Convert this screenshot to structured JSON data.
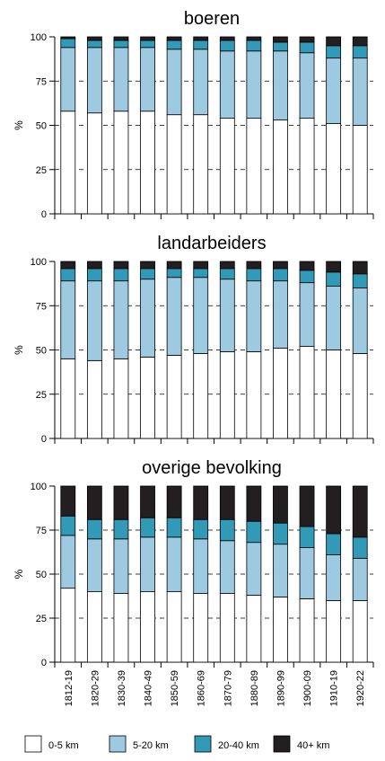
{
  "colors": {
    "0-5 km": "#ffffff",
    "5-20 km": "#9dc9e1",
    "20-40 km": "#3299b6",
    "40+ km": "#231f20"
  },
  "legend": [
    "0-5 km",
    "5-20 km",
    "20-40 km",
    "40+ km"
  ],
  "chart_data": [
    {
      "type": "bar",
      "stacked": true,
      "title": "boeren",
      "ylabel": "%",
      "ylim": [
        0,
        100
      ],
      "yticks": [
        0,
        25,
        50,
        75,
        100
      ],
      "grid": "dashed horizontal",
      "categories": [
        "1812-19",
        "1820-29",
        "1830-39",
        "1840-49",
        "1850-59",
        "1860-69",
        "1870-79",
        "1880-89",
        "1890-99",
        "1900-09",
        "1910-19",
        "1920-22"
      ],
      "series": [
        {
          "name": "0-5 km",
          "values": [
            58,
            57,
            58,
            58,
            56,
            56,
            54,
            54,
            53,
            54,
            51,
            50
          ]
        },
        {
          "name": "5-20 km",
          "values": [
            36,
            37,
            36,
            36,
            37,
            37,
            38,
            38,
            39,
            37,
            37,
            38
          ]
        },
        {
          "name": "20-40 km",
          "values": [
            5,
            4,
            4,
            4,
            5,
            5,
            6,
            6,
            5,
            6,
            7,
            7
          ]
        },
        {
          "name": "40+ km",
          "values": [
            1,
            2,
            2,
            2,
            2,
            2,
            2,
            2,
            3,
            3,
            5,
            5
          ]
        }
      ]
    },
    {
      "type": "bar",
      "stacked": true,
      "title": "landarbeiders",
      "ylabel": "%",
      "ylim": [
        0,
        100
      ],
      "yticks": [
        0,
        25,
        50,
        75,
        100
      ],
      "grid": "dashed horizontal",
      "categories": [
        "1812-19",
        "1820-29",
        "1830-39",
        "1840-49",
        "1850-59",
        "1860-69",
        "1870-79",
        "1880-89",
        "1890-99",
        "1900-09",
        "1910-19",
        "1920-22"
      ],
      "series": [
        {
          "name": "0-5 km",
          "values": [
            45,
            44,
            45,
            46,
            47,
            48,
            49,
            49,
            51,
            52,
            50,
            48
          ]
        },
        {
          "name": "5-20 km",
          "values": [
            44,
            45,
            44,
            44,
            44,
            43,
            41,
            40,
            38,
            36,
            36,
            37
          ]
        },
        {
          "name": "20-40 km",
          "values": [
            7,
            7,
            7,
            6,
            5,
            5,
            6,
            7,
            7,
            7,
            8,
            8
          ]
        },
        {
          "name": "40+ km",
          "values": [
            4,
            4,
            4,
            4,
            4,
            4,
            4,
            4,
            4,
            5,
            6,
            7
          ]
        }
      ]
    },
    {
      "type": "bar",
      "stacked": true,
      "title": "overige bevolking",
      "ylabel": "%",
      "ylim": [
        0,
        100
      ],
      "yticks": [
        0,
        25,
        50,
        75,
        100
      ],
      "grid": "dashed horizontal",
      "categories": [
        "1812-19",
        "1820-29",
        "1830-39",
        "1840-49",
        "1850-59",
        "1860-69",
        "1870-79",
        "1880-89",
        "1890-99",
        "1900-09",
        "1910-19",
        "1920-22"
      ],
      "series": [
        {
          "name": "0-5 km",
          "values": [
            42,
            40,
            39,
            40,
            40,
            39,
            39,
            38,
            37,
            36,
            35,
            35
          ]
        },
        {
          "name": "5-20 km",
          "values": [
            30,
            30,
            31,
            31,
            31,
            31,
            30,
            30,
            30,
            29,
            26,
            24
          ]
        },
        {
          "name": "20-40 km",
          "values": [
            11,
            11,
            11,
            11,
            11,
            11,
            12,
            12,
            12,
            12,
            12,
            12
          ]
        },
        {
          "name": "40+ km",
          "values": [
            17,
            19,
            19,
            18,
            18,
            19,
            19,
            20,
            21,
            23,
            27,
            29
          ]
        }
      ]
    }
  ]
}
